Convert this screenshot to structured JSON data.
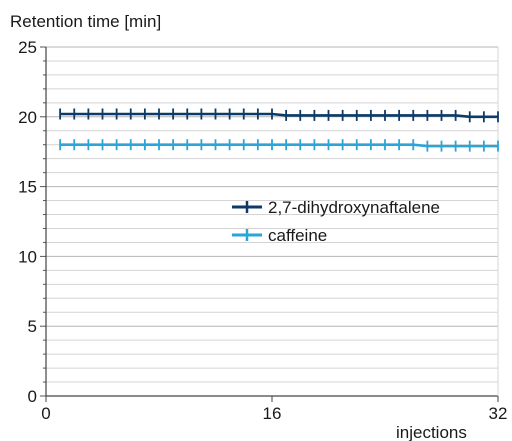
{
  "chart_data": {
    "type": "line",
    "ylabel": "Retention time [min]",
    "xlabel": "injections",
    "xlim": [
      0,
      32
    ],
    "ylim": [
      0,
      25
    ],
    "x_ticks": [
      0,
      16,
      32
    ],
    "y_ticks": [
      0,
      5,
      10,
      15,
      20,
      25
    ],
    "y_minor_step": 1,
    "grid": true,
    "legend_position": "center-right",
    "series": [
      {
        "name": "2,7-dihydroxynaftalene",
        "color": "#0d3a66",
        "x": [
          1,
          2,
          3,
          4,
          5,
          6,
          7,
          8,
          9,
          10,
          11,
          12,
          13,
          14,
          15,
          16,
          17,
          18,
          19,
          20,
          21,
          22,
          23,
          24,
          25,
          26,
          27,
          28,
          29,
          30,
          31,
          32
        ],
        "y": [
          20.2,
          20.2,
          20.2,
          20.2,
          20.2,
          20.2,
          20.2,
          20.2,
          20.2,
          20.2,
          20.2,
          20.2,
          20.2,
          20.2,
          20.2,
          20.2,
          20.1,
          20.1,
          20.1,
          20.1,
          20.1,
          20.1,
          20.1,
          20.1,
          20.1,
          20.1,
          20.1,
          20.1,
          20.1,
          20.0,
          20.0,
          20.0
        ]
      },
      {
        "name": "caffeine",
        "color": "#2aa5d8",
        "x": [
          1,
          2,
          3,
          4,
          5,
          6,
          7,
          8,
          9,
          10,
          11,
          12,
          13,
          14,
          15,
          16,
          17,
          18,
          19,
          20,
          21,
          22,
          23,
          24,
          25,
          26,
          27,
          28,
          29,
          30,
          31,
          32
        ],
        "y": [
          18.0,
          18.0,
          18.0,
          18.0,
          18.0,
          18.0,
          18.0,
          18.0,
          18.0,
          18.0,
          18.0,
          18.0,
          18.0,
          18.0,
          18.0,
          18.0,
          18.0,
          18.0,
          18.0,
          18.0,
          18.0,
          18.0,
          18.0,
          18.0,
          18.0,
          18.0,
          17.9,
          17.9,
          17.9,
          17.9,
          17.9,
          17.9
        ]
      }
    ]
  }
}
